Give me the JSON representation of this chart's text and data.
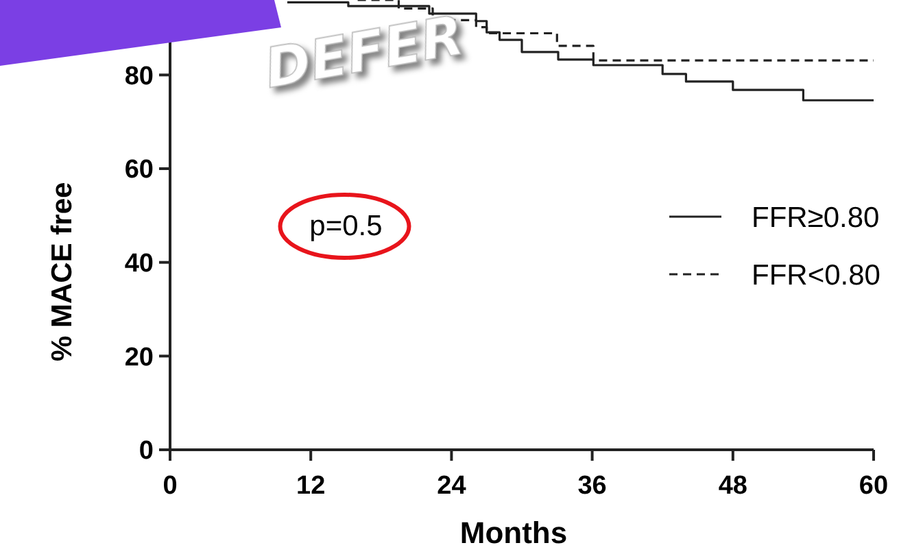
{
  "chart_data": {
    "type": "step",
    "xlabel": "Months",
    "ylabel": "% MACE free",
    "xlim": [
      0,
      60
    ],
    "ylim": [
      0,
      96
    ],
    "xticks": [
      0,
      12,
      24,
      36,
      48,
      60
    ],
    "yticks": [
      0,
      20,
      40,
      60,
      80
    ],
    "legend": "right",
    "annotations": [
      "p=0.5",
      "DEFER"
    ],
    "series": [
      {
        "name": "FFR≥0.80",
        "color": "#222222",
        "line_style": "solid",
        "x": [
          10,
          15.2,
          22.1,
          26.1,
          27,
          28.1,
          30,
          33.1,
          36.1,
          42,
          44,
          48,
          54,
          60
        ],
        "values": [
          95.5,
          94.7,
          93.1,
          91.5,
          89.1,
          87.5,
          84.9,
          83.3,
          82.1,
          80.2,
          78.6,
          76.8,
          74.6,
          74.6
        ]
      },
      {
        "name": "FFR<0.80",
        "color": "#222222",
        "line_style": "dashed",
        "x": [
          16,
          19.5,
          22.4,
          26.1,
          27,
          33,
          36.1,
          60
        ],
        "values": [
          96,
          94.2,
          91.7,
          90.2,
          88.9,
          86.2,
          83.1,
          83.1
        ]
      }
    ]
  }
}
